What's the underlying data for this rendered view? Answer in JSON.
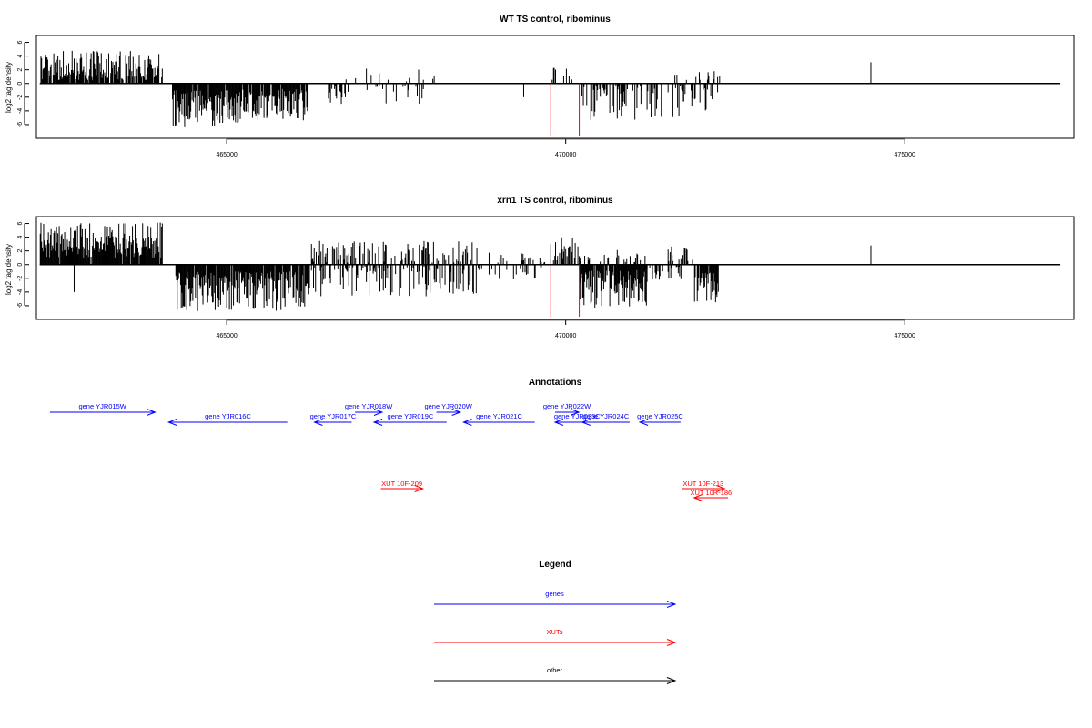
{
  "colors": {
    "gene": "#0000ff",
    "xut": "#ff0000",
    "other": "#000000",
    "marker": "#ff0000",
    "bars": "#000000"
  },
  "chart_data": [
    {
      "type": "bar",
      "title": "WT TS control, ribominus",
      "ylabel": "log2 tag density",
      "xlim": [
        462200,
        477500
      ],
      "ylim": [
        -8,
        7
      ],
      "yticks": [
        -6,
        -4,
        -2,
        0,
        2,
        4,
        6
      ],
      "xticks": [
        465000,
        470000,
        475000
      ],
      "grid": false,
      "red_markers_x": [
        469780,
        470200
      ],
      "segments": [
        {
          "start": 462250,
          "end": 464050,
          "sign": 1,
          "min": 0.5,
          "max": 4.8,
          "density": 0.8
        },
        {
          "start": 464200,
          "end": 465200,
          "sign": -1,
          "min": 1.0,
          "max": 6.5,
          "density": 0.95
        },
        {
          "start": 465200,
          "end": 466200,
          "sign": -1,
          "min": 0.8,
          "max": 5.5,
          "density": 0.9
        },
        {
          "start": 466500,
          "end": 467900,
          "sign": -1,
          "min": 0.3,
          "max": 3.0,
          "density": 0.2
        },
        {
          "start": 466500,
          "end": 468100,
          "sign": 1,
          "min": 0.3,
          "max": 2.6,
          "density": 0.07
        },
        {
          "start": 469780,
          "end": 470200,
          "sign": 1,
          "min": 0.5,
          "max": 2.6,
          "density": 0.25
        },
        {
          "start": 470200,
          "end": 471700,
          "sign": -1,
          "min": 0.3,
          "max": 5.5,
          "density": 0.35
        },
        {
          "start": 471400,
          "end": 472300,
          "sign": 1,
          "min": 0.5,
          "max": 2.0,
          "density": 0.15
        },
        {
          "start": 471700,
          "end": 472300,
          "sign": -1,
          "min": 0.5,
          "max": 4.0,
          "density": 0.35
        }
      ],
      "isolated": [
        {
          "x": 469380,
          "y": -2.0
        },
        {
          "x": 474500,
          "y": 3.1
        }
      ]
    },
    {
      "type": "bar",
      "title": "xrn1 TS control, ribominus",
      "ylabel": "log2 tag density",
      "xlim": [
        462200,
        477500
      ],
      "ylim": [
        -8,
        7
      ],
      "yticks": [
        -6,
        -4,
        -2,
        0,
        2,
        4,
        6
      ],
      "xticks": [
        465000,
        470000,
        475000
      ],
      "grid": false,
      "red_markers_x": [
        469780,
        470200
      ],
      "segments": [
        {
          "start": 462250,
          "end": 464050,
          "sign": 1,
          "min": 1.0,
          "max": 6.2,
          "density": 0.95
        },
        {
          "start": 464250,
          "end": 466200,
          "sign": -1,
          "min": 1.0,
          "max": 6.8,
          "density": 0.95
        },
        {
          "start": 466200,
          "end": 468700,
          "sign": 1,
          "min": 0.3,
          "max": 3.5,
          "density": 0.35
        },
        {
          "start": 466200,
          "end": 468700,
          "sign": -1,
          "min": 0.3,
          "max": 4.8,
          "density": 0.4
        },
        {
          "start": 468700,
          "end": 469700,
          "sign": -1,
          "min": 0.3,
          "max": 2.2,
          "density": 0.25
        },
        {
          "start": 468800,
          "end": 469700,
          "sign": 1,
          "min": 0.3,
          "max": 1.8,
          "density": 0.12
        },
        {
          "start": 469780,
          "end": 470200,
          "sign": 1,
          "min": 0.5,
          "max": 4.2,
          "density": 0.45
        },
        {
          "start": 470200,
          "end": 471200,
          "sign": -1,
          "min": 0.8,
          "max": 6.5,
          "density": 0.95
        },
        {
          "start": 470200,
          "end": 471200,
          "sign": 1,
          "min": 0.3,
          "max": 2.5,
          "density": 0.25
        },
        {
          "start": 471200,
          "end": 471700,
          "sign": -1,
          "min": 0.3,
          "max": 2.4,
          "density": 0.3
        },
        {
          "start": 471500,
          "end": 471900,
          "sign": 1,
          "min": 0.5,
          "max": 2.8,
          "density": 0.3
        },
        {
          "start": 471900,
          "end": 472250,
          "sign": -1,
          "min": 1.0,
          "max": 5.5,
          "density": 0.9
        }
      ],
      "isolated": [
        {
          "x": 462750,
          "y": -4.0
        },
        {
          "x": 474500,
          "y": 2.8
        }
      ]
    }
  ],
  "annotations": {
    "title": "Annotations",
    "genes": [
      {
        "label": "gene YJR015W",
        "start": 462400,
        "end": 463950,
        "dir": "right",
        "row": 0
      },
      {
        "label": "gene YJR016C",
        "start": 464150,
        "end": 465900,
        "dir": "left",
        "row": 1
      },
      {
        "label": "gene YJR017C",
        "start": 466300,
        "end": 466850,
        "dir": "left",
        "row": 1
      },
      {
        "label": "gene YJR018W",
        "start": 466900,
        "end": 467300,
        "dir": "right",
        "row": 0
      },
      {
        "label": "gene YJR019C",
        "start": 467180,
        "end": 468250,
        "dir": "left",
        "row": 1
      },
      {
        "label": "gene YJR020W",
        "start": 468100,
        "end": 468450,
        "dir": "right",
        "row": 0
      },
      {
        "label": "gene YJR021C",
        "start": 468500,
        "end": 469550,
        "dir": "left",
        "row": 1
      },
      {
        "label": "gene YJR022W",
        "start": 469850,
        "end": 470200,
        "dir": "right",
        "row": 0
      },
      {
        "label": "gene YJR023C",
        "start": 469850,
        "end": 470500,
        "dir": "left",
        "row": 1
      },
      {
        "label": "gene YJR024C",
        "start": 470250,
        "end": 470950,
        "dir": "left",
        "row": 1
      },
      {
        "label": "gene YJR025C",
        "start": 471100,
        "end": 471700,
        "dir": "left",
        "row": 1
      }
    ],
    "xuts": [
      {
        "label": "XUT 10F-209",
        "start": 467280,
        "end": 467900,
        "dir": "right",
        "row": 0
      },
      {
        "label": "XUT 10F-213",
        "start": 471720,
        "end": 472350,
        "dir": "right",
        "row": 0
      },
      {
        "label": "XUT 10R-186",
        "start": 471900,
        "end": 472400,
        "dir": "left",
        "row": 1
      }
    ]
  },
  "legend": {
    "title": "Legend",
    "items": [
      {
        "label": "genes",
        "color": "#0000ff"
      },
      {
        "label": "XUTs",
        "color": "#ff0000"
      },
      {
        "label": "other",
        "color": "#000000"
      }
    ]
  }
}
